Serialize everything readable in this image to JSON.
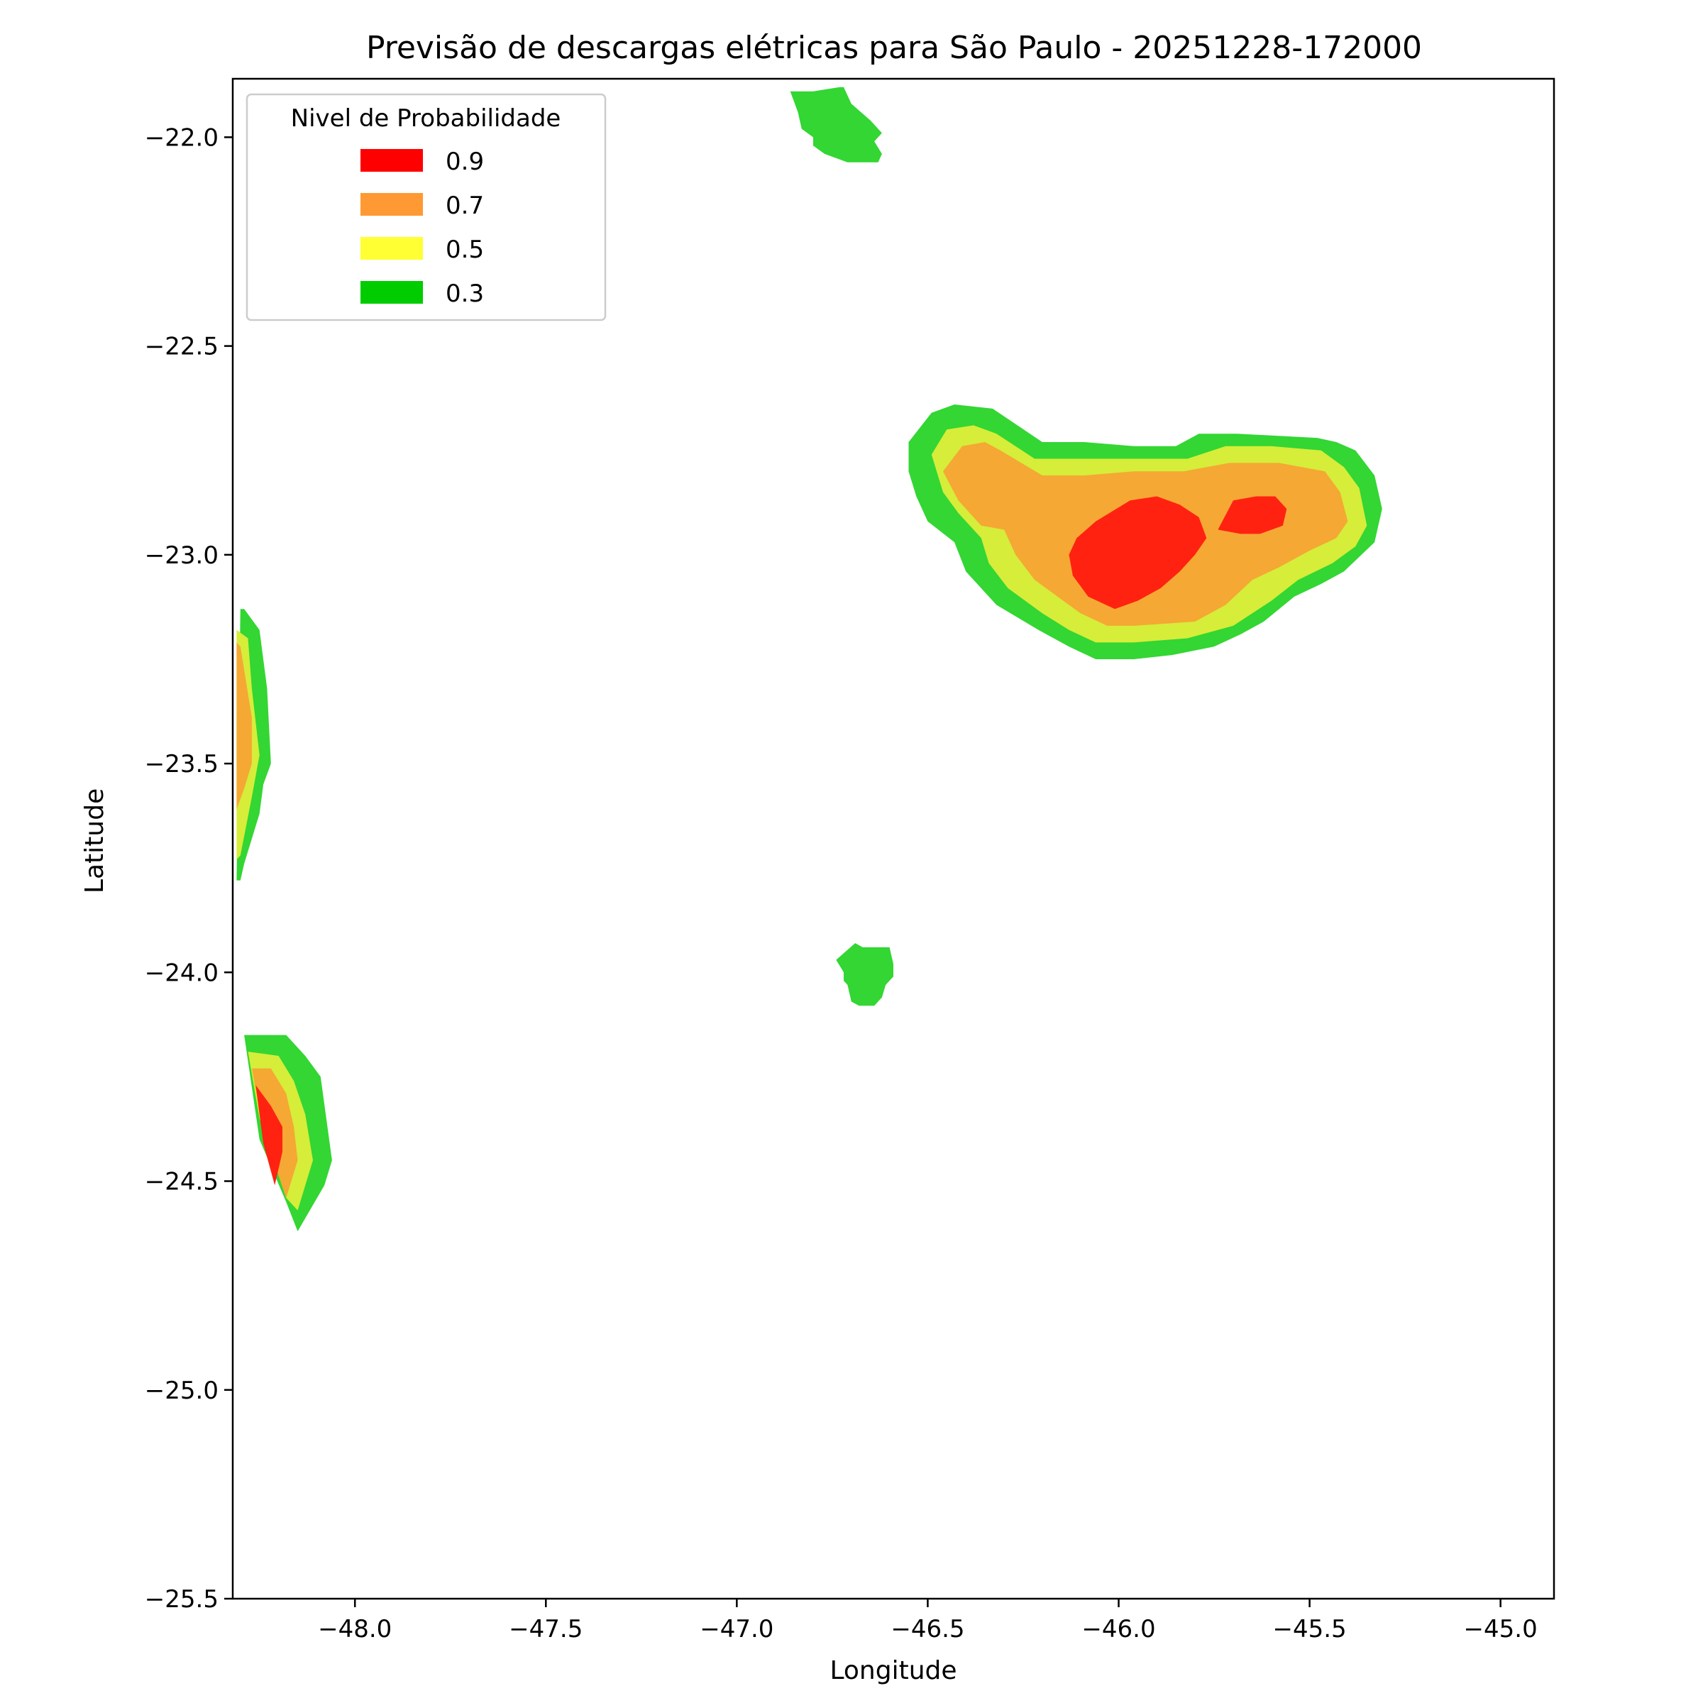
{
  "chart_data": {
    "type": "contour",
    "title": "Previsão de descargas elétricas para São Paulo - 20251228-172000",
    "xlabel": "Longitude",
    "ylabel": "Latitude",
    "xlim": [
      -48.32,
      -44.86
    ],
    "ylim": [
      -25.5,
      -21.86
    ],
    "xticks": [
      -48.0,
      -47.5,
      -47.0,
      -46.5,
      -46.0,
      -45.5,
      -45.0
    ],
    "xtick_labels": [
      "−48.0",
      "−47.5",
      "−47.0",
      "−46.5",
      "−46.0",
      "−45.5",
      "−45.0"
    ],
    "yticks": [
      -22.0,
      -22.5,
      -23.0,
      -23.5,
      -24.0,
      -24.5,
      -25.0,
      -25.5
    ],
    "ytick_labels": [
      "−22.0",
      "−22.5",
      "−23.0",
      "−23.5",
      "−24.0",
      "−24.5",
      "−25.0",
      "−25.5"
    ],
    "grid": false,
    "legend": {
      "title": "Nivel de Probabilidade",
      "position": "top-left",
      "entries": [
        {
          "label": "0.9",
          "color": "#ff0000"
        },
        {
          "label": "0.7",
          "color": "#ff9933"
        },
        {
          "label": "0.5",
          "color": "#ffff33"
        },
        {
          "label": "0.3",
          "color": "#00cc00"
        }
      ]
    },
    "fill_colors": {
      "0.3": "#33d633",
      "0.5": "#d6ed3a",
      "0.7": "#f5a833",
      "0.9": "#ff2211"
    },
    "regions": [
      {
        "name": "north-cell",
        "layers": [
          {
            "level": "0.3",
            "points": [
              [
                -46.86,
                -21.89
              ],
              [
                -46.8,
                -21.89
              ],
              [
                -46.73,
                -21.88
              ],
              [
                -46.72,
                -21.88
              ],
              [
                -46.7,
                -21.92
              ],
              [
                -46.65,
                -21.96
              ],
              [
                -46.62,
                -21.99
              ],
              [
                -46.64,
                -22.01
              ],
              [
                -46.62,
                -22.04
              ],
              [
                -46.63,
                -22.06
              ],
              [
                -46.71,
                -22.06
              ],
              [
                -46.77,
                -22.04
              ],
              [
                -46.8,
                -22.02
              ],
              [
                -46.8,
                -22.0
              ],
              [
                -46.83,
                -21.98
              ],
              [
                -46.84,
                -21.94
              ]
            ]
          }
        ]
      },
      {
        "name": "south-central-cell",
        "layers": [
          {
            "level": "0.3",
            "points": [
              [
                -46.74,
                -23.97
              ],
              [
                -46.69,
                -23.93
              ],
              [
                -46.67,
                -23.94
              ],
              [
                -46.6,
                -23.94
              ],
              [
                -46.59,
                -23.98
              ],
              [
                -46.59,
                -24.01
              ],
              [
                -46.61,
                -24.03
              ],
              [
                -46.62,
                -24.06
              ],
              [
                -46.64,
                -24.08
              ],
              [
                -46.68,
                -24.08
              ],
              [
                -46.7,
                -24.07
              ],
              [
                -46.71,
                -24.03
              ],
              [
                -46.72,
                -24.02
              ],
              [
                -46.72,
                -24.0
              ]
            ]
          }
        ]
      },
      {
        "name": "west-cell",
        "layers": [
          {
            "level": "0.3",
            "points": [
              [
                -48.3,
                -23.13
              ],
              [
                -48.29,
                -23.13
              ],
              [
                -48.25,
                -23.18
              ],
              [
                -48.23,
                -23.32
              ],
              [
                -48.22,
                -23.5
              ],
              [
                -48.24,
                -23.55
              ],
              [
                -48.25,
                -23.62
              ],
              [
                -48.29,
                -23.74
              ],
              [
                -48.3,
                -23.78
              ],
              [
                -48.31,
                -23.78
              ]
            ]
          },
          {
            "level": "0.5",
            "points": [
              [
                -48.31,
                -23.18
              ],
              [
                -48.28,
                -23.2
              ],
              [
                -48.27,
                -23.32
              ],
              [
                -48.25,
                -23.48
              ],
              [
                -48.27,
                -23.58
              ],
              [
                -48.3,
                -23.72
              ],
              [
                -48.31,
                -23.73
              ]
            ]
          },
          {
            "level": "0.7",
            "points": [
              [
                -48.31,
                -23.21
              ],
              [
                -48.3,
                -23.22
              ],
              [
                -48.27,
                -23.39
              ],
              [
                -48.27,
                -23.5
              ],
              [
                -48.29,
                -23.56
              ],
              [
                -48.31,
                -23.61
              ]
            ]
          }
        ]
      },
      {
        "name": "southwest-cell",
        "layers": [
          {
            "level": "0.3",
            "points": [
              [
                -48.29,
                -24.15
              ],
              [
                -48.18,
                -24.15
              ],
              [
                -48.13,
                -24.2
              ],
              [
                -48.09,
                -24.25
              ],
              [
                -48.06,
                -24.45
              ],
              [
                -48.08,
                -24.51
              ],
              [
                -48.15,
                -24.62
              ],
              [
                -48.18,
                -24.55
              ],
              [
                -48.25,
                -24.4
              ]
            ]
          },
          {
            "level": "0.5",
            "points": [
              [
                -48.28,
                -24.19
              ],
              [
                -48.2,
                -24.2
              ],
              [
                -48.16,
                -24.26
              ],
              [
                -48.13,
                -24.34
              ],
              [
                -48.11,
                -24.45
              ],
              [
                -48.15,
                -24.57
              ],
              [
                -48.18,
                -24.54
              ],
              [
                -48.25,
                -24.35
              ]
            ]
          },
          {
            "level": "0.7",
            "points": [
              [
                -48.27,
                -24.23
              ],
              [
                -48.22,
                -24.23
              ],
              [
                -48.18,
                -24.29
              ],
              [
                -48.16,
                -24.37
              ],
              [
                -48.15,
                -24.45
              ],
              [
                -48.18,
                -24.54
              ],
              [
                -48.24,
                -24.38
              ]
            ]
          },
          {
            "level": "0.9",
            "points": [
              [
                -48.26,
                -24.27
              ],
              [
                -48.22,
                -24.32
              ],
              [
                -48.19,
                -24.37
              ],
              [
                -48.19,
                -24.43
              ],
              [
                -48.21,
                -24.51
              ],
              [
                -48.24,
                -24.41
              ]
            ]
          }
        ]
      },
      {
        "name": "northeast-cell",
        "layers": [
          {
            "level": "0.3",
            "points": [
              [
                -46.55,
                -22.73
              ],
              [
                -46.49,
                -22.66
              ],
              [
                -46.43,
                -22.64
              ],
              [
                -46.33,
                -22.65
              ],
              [
                -46.2,
                -22.73
              ],
              [
                -46.09,
                -22.73
              ],
              [
                -45.96,
                -22.74
              ],
              [
                -45.85,
                -22.74
              ],
              [
                -45.79,
                -22.71
              ],
              [
                -45.69,
                -22.71
              ],
              [
                -45.48,
                -22.72
              ],
              [
                -45.43,
                -22.73
              ],
              [
                -45.38,
                -22.75
              ],
              [
                -45.33,
                -22.81
              ],
              [
                -45.31,
                -22.89
              ],
              [
                -45.33,
                -22.97
              ],
              [
                -45.41,
                -23.04
              ],
              [
                -45.47,
                -23.07
              ],
              [
                -45.54,
                -23.1
              ],
              [
                -45.62,
                -23.16
              ],
              [
                -45.68,
                -23.19
              ],
              [
                -45.75,
                -23.22
              ],
              [
                -45.86,
                -23.24
              ],
              [
                -45.96,
                -23.25
              ],
              [
                -46.06,
                -23.25
              ],
              [
                -46.13,
                -23.22
              ],
              [
                -46.21,
                -23.18
              ],
              [
                -46.32,
                -23.12
              ],
              [
                -46.4,
                -23.04
              ],
              [
                -46.43,
                -22.97
              ],
              [
                -46.5,
                -22.92
              ],
              [
                -46.53,
                -22.86
              ],
              [
                -46.55,
                -22.8
              ]
            ]
          },
          {
            "level": "0.5",
            "points": [
              [
                -46.49,
                -22.76
              ],
              [
                -46.45,
                -22.7
              ],
              [
                -46.38,
                -22.69
              ],
              [
                -46.32,
                -22.71
              ],
              [
                -46.22,
                -22.77
              ],
              [
                -46.09,
                -22.77
              ],
              [
                -45.96,
                -22.77
              ],
              [
                -45.82,
                -22.77
              ],
              [
                -45.72,
                -22.74
              ],
              [
                -45.6,
                -22.74
              ],
              [
                -45.47,
                -22.75
              ],
              [
                -45.41,
                -22.79
              ],
              [
                -45.37,
                -22.84
              ],
              [
                -45.35,
                -22.93
              ],
              [
                -45.38,
                -22.98
              ],
              [
                -45.44,
                -23.02
              ],
              [
                -45.53,
                -23.06
              ],
              [
                -45.6,
                -23.11
              ],
              [
                -45.7,
                -23.17
              ],
              [
                -45.82,
                -23.2
              ],
              [
                -45.96,
                -23.21
              ],
              [
                -46.06,
                -23.21
              ],
              [
                -46.13,
                -23.18
              ],
              [
                -46.2,
                -23.14
              ],
              [
                -46.29,
                -23.08
              ],
              [
                -46.34,
                -23.02
              ],
              [
                -46.36,
                -22.96
              ],
              [
                -46.42,
                -22.9
              ],
              [
                -46.46,
                -22.85
              ]
            ]
          },
          {
            "level": "0.7",
            "points": [
              [
                -46.46,
                -22.8
              ],
              [
                -46.41,
                -22.74
              ],
              [
                -46.35,
                -22.73
              ],
              [
                -46.31,
                -22.75
              ],
              [
                -46.2,
                -22.81
              ],
              [
                -46.09,
                -22.81
              ],
              [
                -45.96,
                -22.8
              ],
              [
                -45.83,
                -22.8
              ],
              [
                -45.71,
                -22.78
              ],
              [
                -45.58,
                -22.78
              ],
              [
                -45.46,
                -22.8
              ],
              [
                -45.42,
                -22.85
              ],
              [
                -45.4,
                -22.92
              ],
              [
                -45.43,
                -22.96
              ],
              [
                -45.5,
                -22.99
              ],
              [
                -45.58,
                -23.03
              ],
              [
                -45.65,
                -23.06
              ],
              [
                -45.72,
                -23.12
              ],
              [
                -45.8,
                -23.16
              ],
              [
                -45.96,
                -23.17
              ],
              [
                -46.03,
                -23.17
              ],
              [
                -46.1,
                -23.14
              ],
              [
                -46.16,
                -23.1
              ],
              [
                -46.22,
                -23.06
              ],
              [
                -46.27,
                -23.0
              ],
              [
                -46.3,
                -22.94
              ],
              [
                -46.36,
                -22.93
              ],
              [
                -46.42,
                -22.87
              ]
            ]
          },
          {
            "level": "0.9",
            "points": [
              [
                -46.06,
                -22.92
              ],
              [
                -45.97,
                -22.87
              ],
              [
                -45.9,
                -22.86
              ],
              [
                -45.84,
                -22.88
              ],
              [
                -45.79,
                -22.91
              ],
              [
                -45.77,
                -22.96
              ],
              [
                -45.8,
                -23.0
              ],
              [
                -45.84,
                -23.04
              ],
              [
                -45.89,
                -23.08
              ],
              [
                -45.95,
                -23.11
              ],
              [
                -46.01,
                -23.13
              ],
              [
                -46.08,
                -23.1
              ],
              [
                -46.12,
                -23.05
              ],
              [
                -46.13,
                -23.0
              ],
              [
                -46.11,
                -22.96
              ]
            ]
          },
          {
            "level": "0.9",
            "points": [
              [
                -45.74,
                -22.94
              ],
              [
                -45.7,
                -22.87
              ],
              [
                -45.64,
                -22.86
              ],
              [
                -45.59,
                -22.86
              ],
              [
                -45.56,
                -22.89
              ],
              [
                -45.57,
                -22.93
              ],
              [
                -45.63,
                -22.95
              ],
              [
                -45.68,
                -22.95
              ]
            ]
          }
        ]
      }
    ]
  }
}
